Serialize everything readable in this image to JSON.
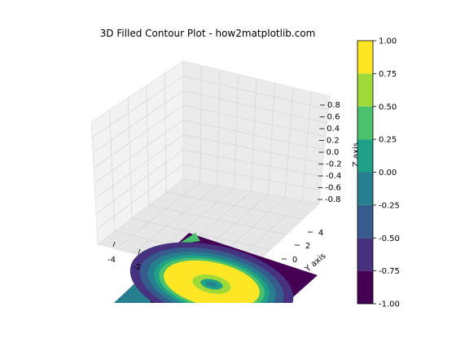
{
  "chart_data": {
    "type": "contour3d-filled",
    "title": "3D Filled Contour Plot - how2matplotlib.com",
    "x_ticks": [
      "-4",
      "-2"
    ],
    "y_ticks": [
      "4",
      "2",
      "0"
    ],
    "y_label": "Y axis",
    "z_ticks": [
      "0.8",
      "0.6",
      "0.4",
      "0.2",
      "0.0",
      "-0.2",
      "-0.4",
      "-0.6",
      "-0.8"
    ],
    "z_label": "Z axis",
    "colorbar": {
      "ticks": [
        "1.00",
        "0.75",
        "0.50",
        "0.25",
        "0.00",
        "-0.25",
        "-0.50",
        "-0.75",
        "-1.00"
      ],
      "levels": [
        -1.0,
        -0.75,
        -0.5,
        -0.25,
        0.0,
        0.25,
        0.5,
        0.75,
        1.0
      ],
      "colors": [
        "#440154",
        "#46327e",
        "#365c8d",
        "#277f8e",
        "#1fa187",
        "#4ac16d",
        "#a0da39",
        "#fde725"
      ]
    },
    "grid": true
  }
}
